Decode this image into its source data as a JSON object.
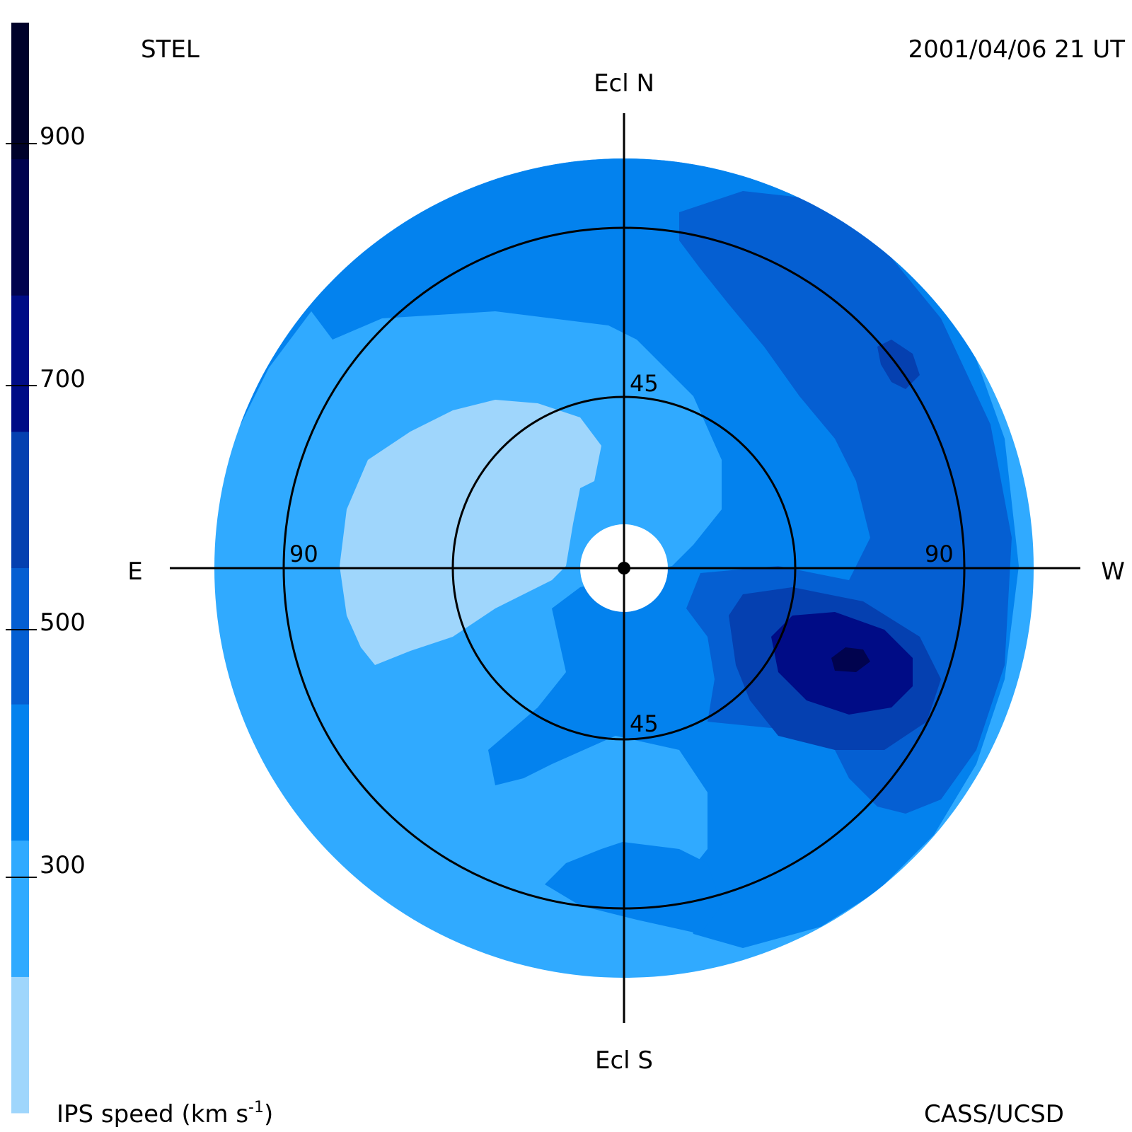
{
  "header": {
    "left_label": "STEL",
    "right_label": "2001/04/06 21 UT"
  },
  "footer": {
    "left_prefix": "IPS speed (km s",
    "left_sup": "-1",
    "left_suffix": ")",
    "right_label": "CASS/UCSD"
  },
  "colorbar": {
    "ticks": [
      "300",
      "500",
      "700",
      "900"
    ],
    "bands": [
      "#9fd6fc",
      "#30aaff",
      "#0382ee",
      "#055fd2",
      "#0540b0",
      "#000c86",
      "#01034e",
      "#00022a"
    ]
  },
  "compass": {
    "north": "Ecl N",
    "south": "Ecl S",
    "east": "E",
    "west": "W"
  },
  "rings": {
    "inner_top": "45",
    "inner_bottom": "45",
    "outer_left": "90",
    "outer_right": "90"
  },
  "colors": {
    "disk_background": "#30aaff",
    "levels": {
      "lightest": "#9fd6fc",
      "light": "#30aaff",
      "mid": "#0382ee",
      "dark": "#055fd2",
      "darker": "#0540b0",
      "navy": "#000c86",
      "deepest": "#01034e"
    }
  }
}
